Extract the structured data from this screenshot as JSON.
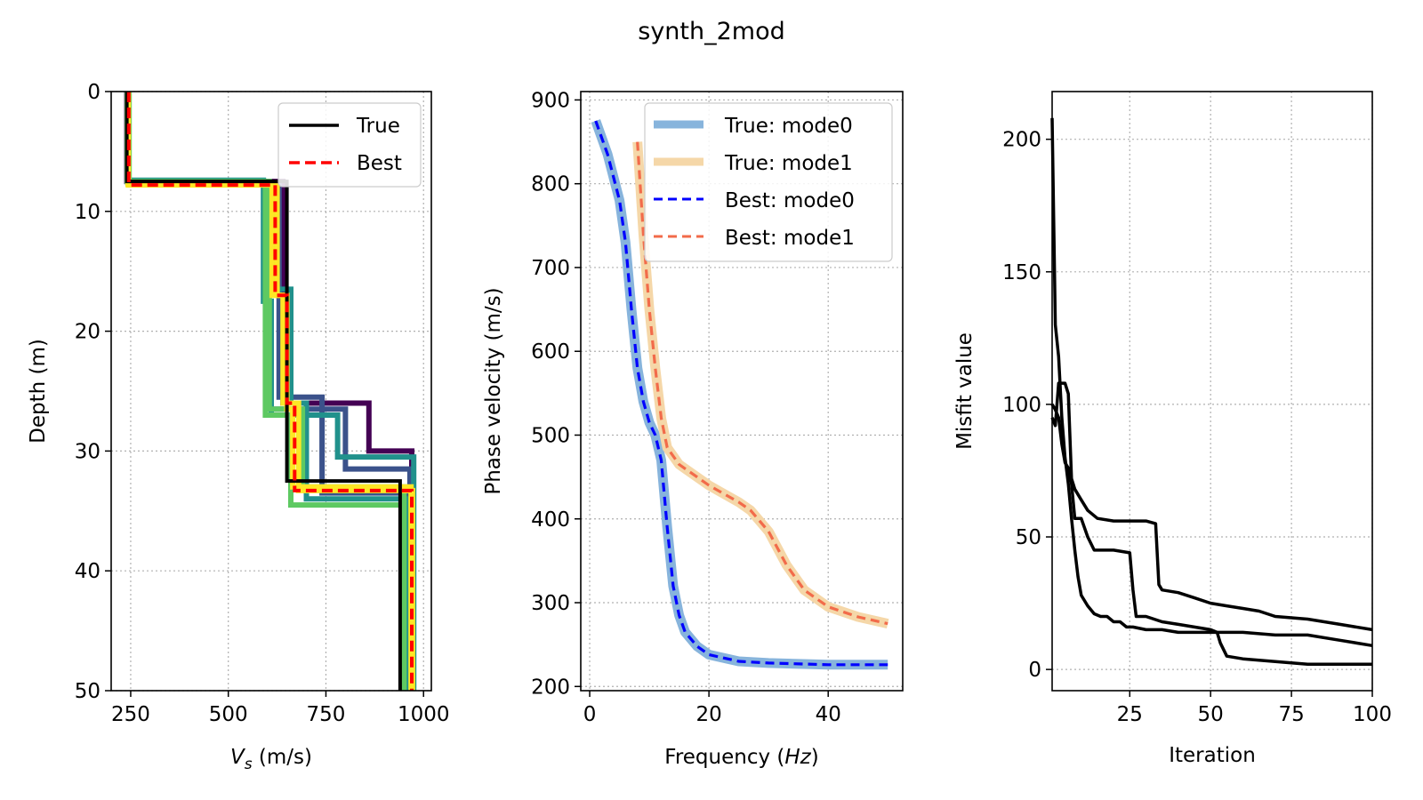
{
  "figure": {
    "title": "synth_2mod"
  },
  "chart_data": [
    {
      "type": "line",
      "panel": "velocity-profile",
      "xlabel_main": "V",
      "xlabel_sub": "s",
      "xlabel_rest": " (m/s)",
      "ylabel": "Depth (m)",
      "xlim": [
        200,
        1020
      ],
      "ylim": [
        50,
        0
      ],
      "xticks": [
        250,
        500,
        750,
        1000
      ],
      "yticks": [
        0,
        10,
        20,
        30,
        40,
        50
      ],
      "grid": true,
      "legend": {
        "placement": "top-right",
        "entries": [
          "True",
          "Best"
        ]
      },
      "series": [
        {
          "name": "True",
          "color": "#000000",
          "style": "solid",
          "points": [
            [
              240,
              0
            ],
            [
              240,
              7.5
            ],
            [
              650,
              7.5
            ],
            [
              650,
              32.5
            ],
            [
              940,
              32.5
            ],
            [
              940,
              50
            ]
          ]
        },
        {
          "name": "Best",
          "color": "#ff0000",
          "style": "dashed",
          "points": [
            [
              245,
              0
            ],
            [
              245,
              7.8
            ],
            [
              620,
              7.8
            ],
            [
              620,
              17
            ],
            [
              650,
              17
            ],
            [
              650,
              26
            ],
            [
              670,
              26
            ],
            [
              670,
              33.3
            ],
            [
              970,
              33.3
            ],
            [
              970,
              50
            ]
          ]
        }
      ],
      "ensemble_colors": [
        "#440154",
        "#3b528b",
        "#21918c",
        "#5ec962",
        "#fde725"
      ],
      "ensemble": [
        {
          "color": "#440154",
          "points": [
            [
              240,
              0
            ],
            [
              240,
              7.5
            ],
            [
              640,
              7.5
            ],
            [
              640,
              26
            ],
            [
              860,
              26
            ],
            [
              860,
              30
            ],
            [
              970,
              30
            ],
            [
              970,
              50
            ]
          ]
        },
        {
          "color": "#3b528b",
          "points": [
            [
              245,
              0
            ],
            [
              245,
              7.5
            ],
            [
              600,
              7.5
            ],
            [
              600,
              26.5
            ],
            [
              800,
              26.5
            ],
            [
              800,
              31.5
            ],
            [
              965,
              31.5
            ],
            [
              965,
              50
            ]
          ]
        },
        {
          "color": "#3b528b",
          "points": [
            [
              243,
              0
            ],
            [
              243,
              7.6
            ],
            [
              630,
              7.6
            ],
            [
              630,
              25.5
            ],
            [
              740,
              25.5
            ],
            [
              740,
              33.5
            ],
            [
              960,
              33.5
            ],
            [
              960,
              50
            ]
          ]
        },
        {
          "color": "#21918c",
          "points": [
            [
              242,
              0
            ],
            [
              242,
              7.4
            ],
            [
              590,
              7.4
            ],
            [
              590,
              17.5
            ],
            [
              610,
              17.5
            ],
            [
              610,
              27
            ],
            [
              780,
              27
            ],
            [
              780,
              30.5
            ],
            [
              975,
              30.5
            ],
            [
              975,
              50
            ]
          ]
        },
        {
          "color": "#21918c",
          "points": [
            [
              244,
              0
            ],
            [
              244,
              7.7
            ],
            [
              615,
              7.7
            ],
            [
              615,
              16.5
            ],
            [
              660,
              16.5
            ],
            [
              660,
              26
            ],
            [
              700,
              26
            ],
            [
              700,
              34
            ],
            [
              955,
              34
            ],
            [
              955,
              50
            ]
          ]
        },
        {
          "color": "#5ec962",
          "points": [
            [
              241,
              0
            ],
            [
              241,
              7.5
            ],
            [
              605,
              7.5
            ],
            [
              605,
              26.5
            ],
            [
              690,
              26.5
            ],
            [
              690,
              33
            ],
            [
              950,
              33
            ],
            [
              950,
              50
            ]
          ]
        },
        {
          "color": "#5ec962",
          "points": [
            [
              246,
              0
            ],
            [
              246,
              7.6
            ],
            [
              595,
              7.6
            ],
            [
              595,
              27
            ],
            [
              660,
              27
            ],
            [
              660,
              34.5
            ],
            [
              945,
              34.5
            ],
            [
              945,
              50
            ]
          ]
        },
        {
          "color": "#fde725",
          "points": [
            [
              243,
              0
            ],
            [
              243,
              7.7
            ],
            [
              612,
              7.7
            ],
            [
              612,
              17
            ],
            [
              640,
              17
            ],
            [
              640,
              26
            ],
            [
              680,
              26
            ],
            [
              680,
              33.3
            ],
            [
              972,
              33.3
            ],
            [
              972,
              50
            ]
          ]
        },
        {
          "color": "#fde725",
          "points": [
            [
              244,
              0
            ],
            [
              244,
              7.8
            ],
            [
              625,
              7.8
            ],
            [
              625,
              17
            ],
            [
              650,
              17
            ],
            [
              650,
              26.5
            ],
            [
              665,
              26.5
            ],
            [
              665,
              33
            ],
            [
              968,
              33
            ],
            [
              968,
              50
            ]
          ]
        }
      ]
    },
    {
      "type": "line",
      "panel": "dispersion",
      "xlabel": "Frequency (Hz)",
      "xlabel_prefix": "Frequency (",
      "xlabel_italic": "Hz",
      "xlabel_suffix": ")",
      "ylabel": "Phase velocity (m/s)",
      "xlim": [
        -1.5,
        52.5
      ],
      "ylim": [
        195,
        910
      ],
      "xticks": [
        0,
        20,
        40
      ],
      "yticks": [
        200,
        300,
        400,
        500,
        600,
        700,
        800,
        900
      ],
      "grid": true,
      "legend": {
        "placement": "top-right",
        "entries": [
          "True: mode0",
          "True: mode1",
          "Best: mode0",
          "Best: mode1"
        ]
      },
      "series": [
        {
          "name": "True: mode0",
          "color": "#87b4dc",
          "style": "thick",
          "x": [
            1,
            3,
            5,
            6,
            7,
            8,
            9,
            10,
            11,
            12,
            13,
            14,
            15,
            16,
            18,
            20,
            25,
            30,
            40,
            50
          ],
          "y": [
            875,
            835,
            780,
            730,
            650,
            580,
            540,
            515,
            500,
            470,
            390,
            320,
            285,
            265,
            248,
            238,
            230,
            228,
            226,
            226
          ]
        },
        {
          "name": "True: mode1",
          "color": "#f5d7a8",
          "style": "thick",
          "x": [
            8,
            9,
            10,
            11,
            12,
            13,
            15,
            18,
            20,
            22,
            25,
            27,
            30,
            33,
            36,
            40,
            45,
            50
          ],
          "y": [
            850,
            740,
            650,
            580,
            520,
            485,
            465,
            450,
            440,
            432,
            420,
            410,
            385,
            345,
            315,
            295,
            283,
            275
          ]
        },
        {
          "name": "Best: mode0",
          "color": "#0000ff",
          "style": "dashed",
          "x": [
            1,
            3,
            5,
            6,
            7,
            8,
            9,
            10,
            11,
            12,
            13,
            14,
            15,
            16,
            18,
            20,
            25,
            30,
            40,
            50
          ],
          "y": [
            875,
            835,
            780,
            730,
            650,
            580,
            540,
            515,
            500,
            470,
            390,
            320,
            285,
            265,
            248,
            238,
            230,
            228,
            226,
            226
          ]
        },
        {
          "name": "Best: mode1",
          "color": "#f26b4a",
          "style": "dashed",
          "x": [
            8,
            9,
            10,
            11,
            12,
            13,
            15,
            18,
            20,
            22,
            25,
            27,
            30,
            33,
            36,
            40,
            45,
            50
          ],
          "y": [
            850,
            740,
            650,
            580,
            520,
            485,
            465,
            450,
            440,
            432,
            420,
            410,
            385,
            345,
            315,
            295,
            283,
            275
          ]
        }
      ]
    },
    {
      "type": "line",
      "panel": "misfit",
      "xlabel": "Iteration",
      "ylabel": "Misfit value",
      "xlim": [
        1,
        100
      ],
      "ylim": [
        -8,
        218
      ],
      "xticks": [
        25,
        50,
        75,
        100
      ],
      "yticks": [
        0,
        50,
        100,
        150,
        200
      ],
      "grid": true,
      "series": [
        {
          "color": "#000000",
          "x": [
            1,
            2,
            3,
            4,
            5,
            6,
            7,
            8,
            9,
            10,
            12,
            14,
            16,
            18,
            20,
            22,
            24,
            26,
            30,
            35,
            40,
            45,
            50,
            55,
            60,
            70,
            80,
            90,
            100
          ],
          "y": [
            208,
            130,
            118,
            95,
            80,
            70,
            57,
            45,
            35,
            28,
            24,
            21,
            20,
            20,
            18,
            18,
            16,
            16,
            15,
            15,
            14,
            14,
            14,
            14,
            14,
            13,
            13,
            11,
            9
          ]
        },
        {
          "color": "#000000",
          "x": [
            1,
            2,
            3,
            4,
            5,
            6,
            7,
            8,
            10,
            12,
            14,
            15,
            20,
            25,
            26,
            27,
            30,
            35,
            40,
            45,
            50,
            52,
            53,
            55,
            60,
            70,
            80,
            90,
            100
          ],
          "y": [
            100,
            98,
            95,
            85,
            78,
            76,
            70,
            57,
            57,
            50,
            45,
            45,
            45,
            44,
            30,
            20,
            20,
            18,
            17,
            16,
            15,
            14,
            10,
            5,
            4,
            3,
            2,
            2,
            2
          ]
        },
        {
          "color": "#000000",
          "x": [
            1,
            2,
            3,
            4,
            5,
            6,
            7,
            8,
            10,
            12,
            15,
            20,
            25,
            30,
            33,
            34,
            35,
            40,
            45,
            50,
            55,
            60,
            65,
            70,
            80,
            90,
            100
          ],
          "y": [
            95,
            92,
            108,
            108,
            108,
            104,
            72,
            68,
            64,
            60,
            57,
            56,
            56,
            56,
            55,
            32,
            30,
            29,
            27,
            25,
            24,
            23,
            22,
            20,
            19,
            17,
            15
          ]
        }
      ]
    }
  ]
}
